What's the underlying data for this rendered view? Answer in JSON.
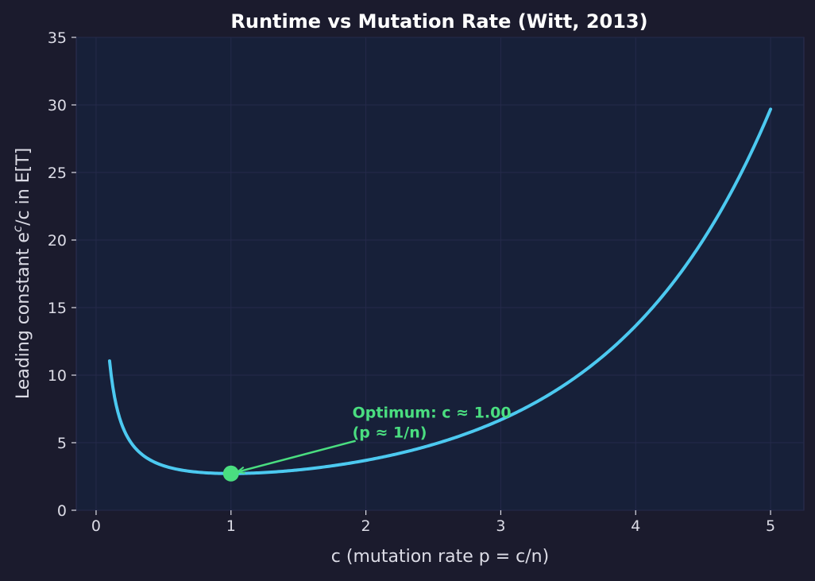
{
  "chart_data": {
    "type": "line",
    "title": "Runtime vs Mutation Rate (Witt, 2013)",
    "xlabel": "c  (mutation rate p = c/n)",
    "ylabel_main": "Leading constant  e",
    "ylabel_sup": "c",
    "ylabel_tail": "/c  in E[T]",
    "xlim": [
      -0.147,
      5.247
    ],
    "ylim": [
      0,
      35
    ],
    "x_ticks": [
      0,
      1,
      2,
      3,
      4,
      5
    ],
    "y_ticks": [
      0,
      5,
      10,
      15,
      20,
      25,
      30,
      35
    ],
    "grid": true,
    "series": [
      {
        "name": "e^c/c",
        "function": "exp(c)/c",
        "x_range": [
          0.1,
          5.0
        ],
        "color": "#4cc9f0"
      }
    ],
    "optimum_point": {
      "x": 1.0,
      "y": 2.718,
      "color": "#4ade80"
    },
    "annotation": {
      "line1": "Optimum: c ≈ 1.00",
      "line2": "(p ≈ 1/n)",
      "text_x": 1.9,
      "text_y": 5.9,
      "color": "#4ade80"
    }
  }
}
